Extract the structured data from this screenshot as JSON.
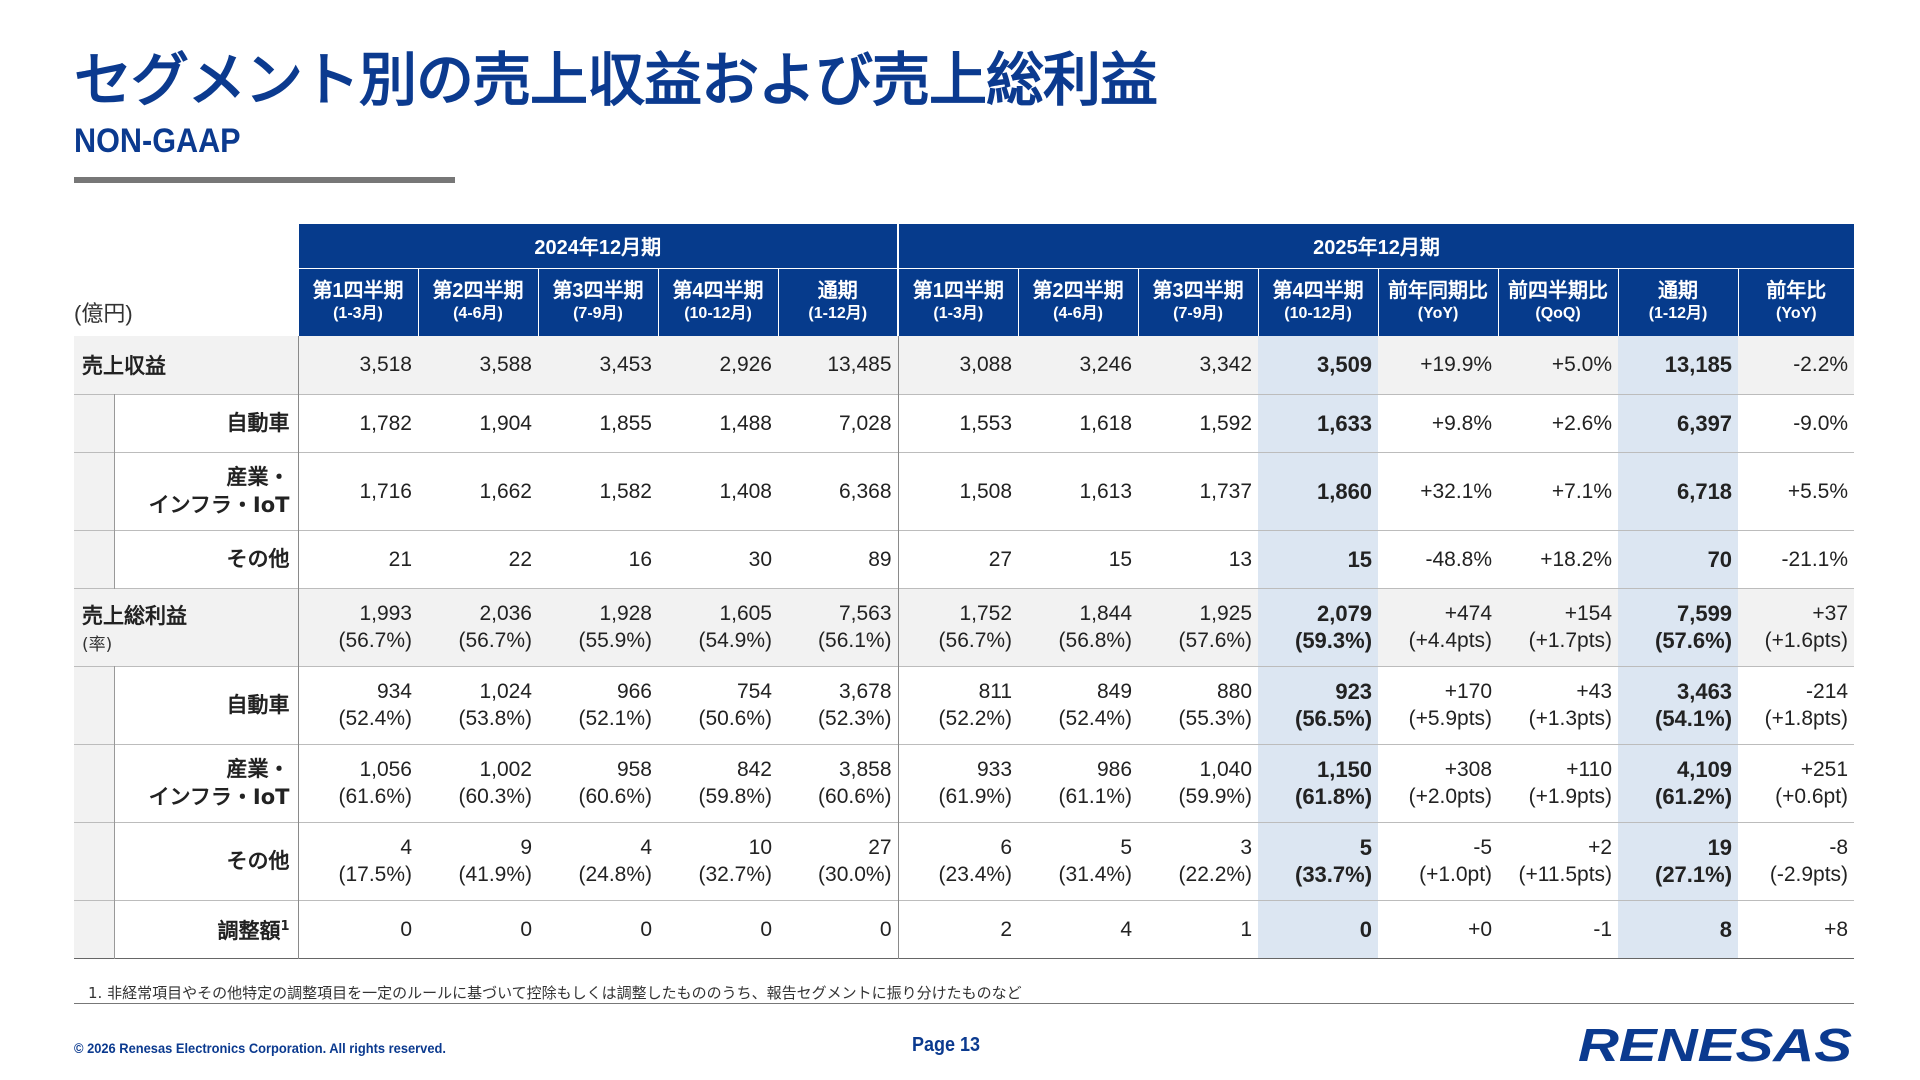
{
  "page": {
    "title": "セグメント別の売上収益および売上総利益",
    "subtitle": "NON-GAAP",
    "unit": "(億円)"
  },
  "table": {
    "groups": {
      "fy2024": "2024年12月期",
      "fy2025": "2025年12月期"
    },
    "columns": [
      {
        "l1": "第1四半期",
        "l2": "(1-3月)"
      },
      {
        "l1": "第2四半期",
        "l2": "(4-6月)"
      },
      {
        "l1": "第3四半期",
        "l2": "(7-9月)"
      },
      {
        "l1": "第4四半期",
        "l2": "(10-12月)"
      },
      {
        "l1": "通期",
        "l2": "(1-12月)"
      },
      {
        "l1": "第1四半期",
        "l2": "(1-3月)"
      },
      {
        "l1": "第2四半期",
        "l2": "(4-6月)"
      },
      {
        "l1": "第3四半期",
        "l2": "(7-9月)"
      },
      {
        "l1": "第4四半期",
        "l2": "(10-12月)"
      },
      {
        "l1": "前年同期比",
        "l2": "(YoY)"
      },
      {
        "l1": "前四半期比",
        "l2": "(QoQ)"
      },
      {
        "l1": "通期",
        "l2": "(1-12月)"
      },
      {
        "l1": "前年比",
        "l2": "(YoY)"
      }
    ],
    "rows": [
      {
        "label": "売上収益",
        "sub": "",
        "v": [
          [
            "3,518"
          ],
          [
            "3,588"
          ],
          [
            "3,453"
          ],
          [
            "2,926"
          ],
          [
            "13,485"
          ],
          [
            "3,088"
          ],
          [
            "3,246"
          ],
          [
            "3,342"
          ],
          [
            "3,509"
          ],
          [
            "+19.9%"
          ],
          [
            "+5.0%"
          ],
          [
            "13,185"
          ],
          [
            "-2.2%"
          ]
        ]
      },
      {
        "label": "自動車",
        "sub": "",
        "v": [
          [
            "1,782"
          ],
          [
            "1,904"
          ],
          [
            "1,855"
          ],
          [
            "1,488"
          ],
          [
            "7,028"
          ],
          [
            "1,553"
          ],
          [
            "1,618"
          ],
          [
            "1,592"
          ],
          [
            "1,633"
          ],
          [
            "+9.8%"
          ],
          [
            "+2.6%"
          ],
          [
            "6,397"
          ],
          [
            "-9.0%"
          ]
        ]
      },
      {
        "label": "産業・",
        "label2": "インフラ・IoT",
        "v": [
          [
            "1,716"
          ],
          [
            "1,662"
          ],
          [
            "1,582"
          ],
          [
            "1,408"
          ],
          [
            "6,368"
          ],
          [
            "1,508"
          ],
          [
            "1,613"
          ],
          [
            "1,737"
          ],
          [
            "1,860"
          ],
          [
            "+32.1%"
          ],
          [
            "+7.1%"
          ],
          [
            "6,718"
          ],
          [
            "+5.5%"
          ]
        ]
      },
      {
        "label": "その他",
        "v": [
          [
            "21"
          ],
          [
            "22"
          ],
          [
            "16"
          ],
          [
            "30"
          ],
          [
            "89"
          ],
          [
            "27"
          ],
          [
            "15"
          ],
          [
            "13"
          ],
          [
            "15"
          ],
          [
            "-48.8%"
          ],
          [
            "+18.2%"
          ],
          [
            "70"
          ],
          [
            "-21.1%"
          ]
        ]
      },
      {
        "label": "売上総利益",
        "sub": "(率)",
        "v": [
          [
            "1,993",
            "(56.7%)"
          ],
          [
            "2,036",
            "(56.7%)"
          ],
          [
            "1,928",
            "(55.9%)"
          ],
          [
            "1,605",
            "(54.9%)"
          ],
          [
            "7,563",
            "(56.1%)"
          ],
          [
            "1,752",
            "(56.7%)"
          ],
          [
            "1,844",
            "(56.8%)"
          ],
          [
            "1,925",
            "(57.6%)"
          ],
          [
            "2,079",
            "(59.3%)"
          ],
          [
            "+474",
            "(+4.4pts)"
          ],
          [
            "+154",
            "(+1.7pts)"
          ],
          [
            "7,599",
            "(57.6%)"
          ],
          [
            "+37",
            "(+1.6pts)"
          ]
        ]
      },
      {
        "label": "自動車",
        "v": [
          [
            "934",
            "(52.4%)"
          ],
          [
            "1,024",
            "(53.8%)"
          ],
          [
            "966",
            "(52.1%)"
          ],
          [
            "754",
            "(50.6%)"
          ],
          [
            "3,678",
            "(52.3%)"
          ],
          [
            "811",
            "(52.2%)"
          ],
          [
            "849",
            "(52.4%)"
          ],
          [
            "880",
            "(55.3%)"
          ],
          [
            "923",
            "(56.5%)"
          ],
          [
            "+170",
            "(+5.9pts)"
          ],
          [
            "+43",
            "(+1.3pts)"
          ],
          [
            "3,463",
            "(54.1%)"
          ],
          [
            "-214",
            "(+1.8pts)"
          ]
        ]
      },
      {
        "label": "産業・",
        "label2": "インフラ・IoT",
        "v": [
          [
            "1,056",
            "(61.6%)"
          ],
          [
            "1,002",
            "(60.3%)"
          ],
          [
            "958",
            "(60.6%)"
          ],
          [
            "842",
            "(59.8%)"
          ],
          [
            "3,858",
            "(60.6%)"
          ],
          [
            "933",
            "(61.9%)"
          ],
          [
            "986",
            "(61.1%)"
          ],
          [
            "1,040",
            "(59.9%)"
          ],
          [
            "1,150",
            "(61.8%)"
          ],
          [
            "+308",
            "(+2.0pts)"
          ],
          [
            "+110",
            "(+1.9pts)"
          ],
          [
            "4,109",
            "(61.2%)"
          ],
          [
            "+251",
            "(+0.6pt)"
          ]
        ]
      },
      {
        "label": "その他",
        "v": [
          [
            "4",
            "(17.5%)"
          ],
          [
            "9",
            "(41.9%)"
          ],
          [
            "4",
            "(24.8%)"
          ],
          [
            "10",
            "(32.7%)"
          ],
          [
            "27",
            "(30.0%)"
          ],
          [
            "6",
            "(23.4%)"
          ],
          [
            "5",
            "(31.4%)"
          ],
          [
            "3",
            "(22.2%)"
          ],
          [
            "5",
            "(33.7%)"
          ],
          [
            "-5",
            "(+1.0pt)"
          ],
          [
            "+2",
            "(+11.5pts)"
          ],
          [
            "19",
            "(27.1%)"
          ],
          [
            "-8",
            "(-2.9pts)"
          ]
        ]
      },
      {
        "label": "調整額",
        "footnote_mark": "1",
        "v": [
          [
            "0"
          ],
          [
            "0"
          ],
          [
            "0"
          ],
          [
            "0"
          ],
          [
            "0"
          ],
          [
            "2"
          ],
          [
            "4"
          ],
          [
            "1"
          ],
          [
            "0"
          ],
          [
            "+0"
          ],
          [
            "-1"
          ],
          [
            "8"
          ],
          [
            "+8"
          ]
        ]
      }
    ]
  },
  "footnote": "1. 非経常項目やその他特定の調整項目を一定のルールに基づいて控除もしくは調整したもののうち、報告セグメントに振り分けたものなど",
  "footer": {
    "copyright": "© 2026 Renesas Electronics Corporation. All rights reserved.",
    "page": "Page 13",
    "logo_text": "RENESAS"
  }
}
